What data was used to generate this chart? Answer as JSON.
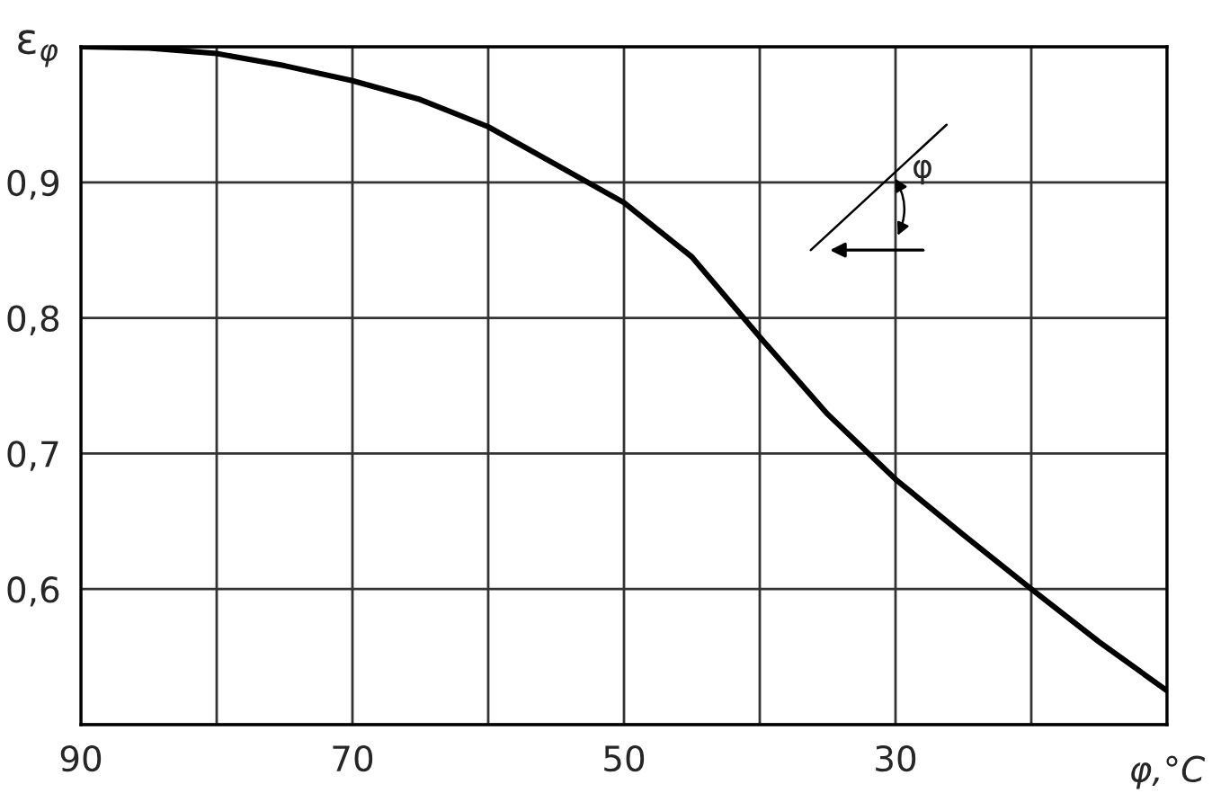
{
  "chart_data": {
    "type": "line",
    "ylabel": "ε$_{φ}$",
    "xlabel": "φ,°C",
    "x": [
      90,
      85,
      80,
      75,
      70,
      65,
      60,
      55,
      50,
      45,
      40,
      35,
      30,
      25,
      20,
      15,
      10
    ],
    "series": [
      {
        "color": "#000000",
        "values": [
          1.0,
          0.999,
          0.995,
          0.986,
          0.975,
          0.961,
          0.941,
          0.913,
          0.885,
          0.845,
          0.786,
          0.729,
          0.681,
          0.64,
          0.6,
          0.561,
          0.525
        ]
      }
    ],
    "xlim": [
      90,
      10
    ],
    "ylim": [
      0.5,
      1.0
    ],
    "xticks": [
      90,
      {
        "value": 80,
        "label": null
      },
      70,
      {
        "value": 60,
        "label": null
      },
      50,
      {
        "value": 40,
        "label": null
      },
      30,
      {
        "value": 20,
        "label": null
      },
      {
        "value": 10,
        "label": null
      }
    ],
    "yticks": [
      {
        "value": 0.5,
        "label": null
      },
      {
        "value": 0.6,
        "label": "0,6"
      },
      {
        "value": 0.7,
        "label": "0,7"
      },
      {
        "value": 0.8,
        "label": "0,8"
      },
      {
        "value": 0.9,
        "label": "0,9"
      },
      {
        "value": 1.0,
        "label": null
      }
    ],
    "grid": true,
    "marker": "none",
    "line_style": "solid",
    "annotations": [
      "φ"
    ]
  }
}
